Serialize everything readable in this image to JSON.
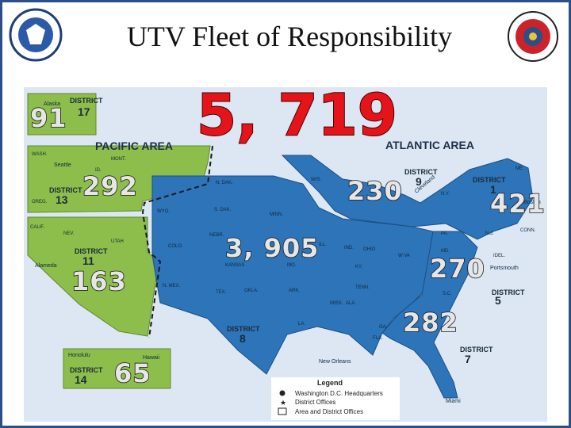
{
  "header": {
    "title": "UTV Fleet of Responsibility"
  },
  "map": {
    "total": "5, 719",
    "areas": [
      "PACIFIC AREA",
      "ATLANTIC AREA"
    ],
    "counts": [
      "91",
      "292",
      "163",
      "65",
      "230",
      "421",
      "3, 905",
      "270",
      "282"
    ],
    "districts": [
      {
        "label": "DISTRICT",
        "number": "17"
      },
      {
        "label": "DISTRICT",
        "number": "13"
      },
      {
        "label": "DISTRICT",
        "number": "11"
      },
      {
        "label": "DISTRICT",
        "number": "14"
      },
      {
        "label": "DISTRICT",
        "number": "8"
      },
      {
        "label": "DISTRICT",
        "number": "9"
      },
      {
        "label": "DISTRICT",
        "number": "1"
      },
      {
        "label": "DISTRICT",
        "number": "5"
      },
      {
        "label": "DISTRICT",
        "number": "7"
      }
    ],
    "cities": [
      "Alaska",
      "Seattle",
      "Alameda",
      "Honolulu",
      "Hawaii",
      "New Orleans",
      "Cleveland",
      "Boston",
      "Portsmouth",
      "Miami"
    ],
    "states": [
      "WASH.",
      "OREG.",
      "ID.",
      "MONT.",
      "CALIF.",
      "NEV.",
      "UTAH",
      "COLO.",
      "N. MEX.",
      "WYO.",
      "N. DAK.",
      "S. DAK.",
      "NEBR.",
      "KANSAS",
      "OKLA.",
      "TEX.",
      "MINN.",
      "WIS.",
      "ILL.",
      "IND.",
      "OHIO",
      "KY.",
      "TENN.",
      "ARK.",
      "LA.",
      "MISS.",
      "ALA.",
      "GA.",
      "FLA.",
      "S.C.",
      "PA.",
      "N.Y.",
      "N.J.",
      "MD.",
      "IDEL.",
      "CONN.",
      "ME.",
      "MO.",
      "W VA"
    ]
  },
  "legend": {
    "title": "Legend",
    "items": [
      "Washington D.C. Headquarters",
      "District Offices",
      "Area and District Offices"
    ]
  }
}
